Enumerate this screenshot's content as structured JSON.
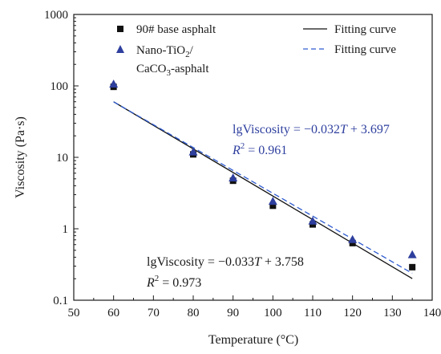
{
  "chart_data": {
    "type": "scatter",
    "xlabel": "Temperature (°C)",
    "ylabel": "Viscosity (Pa·s)",
    "xlim": [
      50,
      140
    ],
    "ylim": [
      0.1,
      1000
    ],
    "y_scale": "log",
    "x_ticks": [
      "50",
      "60",
      "70",
      "80",
      "90",
      "100",
      "110",
      "120",
      "130",
      "140"
    ],
    "y_ticks": [
      "0.1",
      "1",
      "10",
      "100",
      "1000"
    ],
    "grid": false,
    "legend_position": "top",
    "series": [
      {
        "name": "90# base asphalt",
        "marker": "square",
        "color": "#111111",
        "x": [
          60,
          80,
          90,
          100,
          110,
          120,
          135
        ],
        "y": [
          97,
          11,
          4.7,
          2.1,
          1.15,
          0.63,
          0.29
        ]
      },
      {
        "name_main": "Nano-TiO",
        "name_sub1": "2",
        "name_mid": "/",
        "name_line2": "CaCO",
        "name_sub2": "3",
        "name_end": "-asphalt",
        "marker": "triangle",
        "color": "#2e3f9e",
        "x": [
          60,
          80,
          90,
          100,
          110,
          120,
          135
        ],
        "y": [
          105,
          11.8,
          5.1,
          2.4,
          1.27,
          0.7,
          0.43
        ]
      }
    ],
    "fits": [
      {
        "name": "Fitting curve",
        "style": "solid",
        "color": "#111111",
        "slope": -0.033,
        "intercept": 3.758,
        "x_range": [
          60,
          135
        ],
        "eq_prefix": "lgViscosity = −0.033",
        "eq_var": "T",
        "eq_suffix": " + 3.758",
        "r2_label": "R",
        "r2_exp": "2",
        "r2_value": " = 0.973"
      },
      {
        "name": "Fitting curve",
        "style": "dashed",
        "color": "#2e5bd0",
        "slope": -0.032,
        "intercept": 3.697,
        "x_range": [
          60,
          135
        ],
        "eq_prefix": "lgViscosity = −0.032",
        "eq_var": "T",
        "eq_suffix": " + 3.697",
        "r2_label": "R",
        "r2_exp": "2",
        "r2_value": " = 0.961"
      }
    ]
  }
}
